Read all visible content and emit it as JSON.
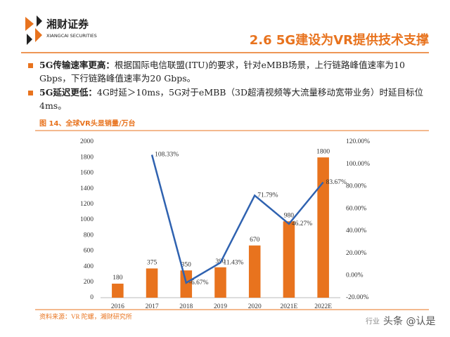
{
  "header": {
    "logo_name": "湘财证券",
    "logo_sub": "XIANGCAI SECURITIES",
    "title": "2.6 5G建设为VR提供技术支撑"
  },
  "bullets": [
    {
      "lead": "5G传输速率更高：",
      "text": "根据国际电信联盟(ITU)的要求，针对eMBB场景，上行链路峰值速率为10 Gbps，下行链路峰值速率为20 Gbps。"
    },
    {
      "lead": "5G延迟更低：",
      "text": "4G时延＞10ms，5G对于eMBB（3D超清视频等大流量移动宽带业务）时延目标位4ms。"
    }
  ],
  "figure_caption": "图 14、全球VR头显销量/万台",
  "source": "资料来源：VR 陀螺，湘财研究所",
  "watermark": [
    "行业",
    "头条 @认是"
  ],
  "chart_data": {
    "type": "bar",
    "categories": [
      "2016",
      "2017",
      "2018",
      "2019",
      "2020",
      "2021E",
      "2022E"
    ],
    "series": [
      {
        "type": "bar",
        "color": "#e8731e",
        "values": [
          180,
          375,
          350,
          390,
          670,
          980,
          1800
        ]
      },
      {
        "type": "line",
        "axis": "y2",
        "color": "#2f62b0",
        "values": [
          null,
          108.33,
          -6.67,
          11.43,
          71.79,
          46.27,
          83.67
        ],
        "value_labels": [
          null,
          "108.33%",
          "-6.67%",
          "11.43%",
          "71.79%",
          "46.27%",
          "83.67%"
        ]
      }
    ],
    "ylim": [
      0,
      2000
    ],
    "yticks": [
      0,
      200,
      400,
      600,
      800,
      1000,
      1200,
      1400,
      1600,
      1800,
      2000
    ],
    "y2lim": [
      -20,
      120
    ],
    "y2ticks": [
      {
        "value": -20,
        "label": "-20.00%"
      },
      {
        "value": 0,
        "label": "0.00%"
      },
      {
        "value": 20,
        "label": "20.00%"
      },
      {
        "value": 40,
        "label": "40.00%"
      },
      {
        "value": 60,
        "label": "60.00%"
      },
      {
        "value": 80,
        "label": "80.00%"
      },
      {
        "value": 100,
        "label": "100.00%"
      },
      {
        "value": 120,
        "label": "120.00%"
      }
    ]
  }
}
